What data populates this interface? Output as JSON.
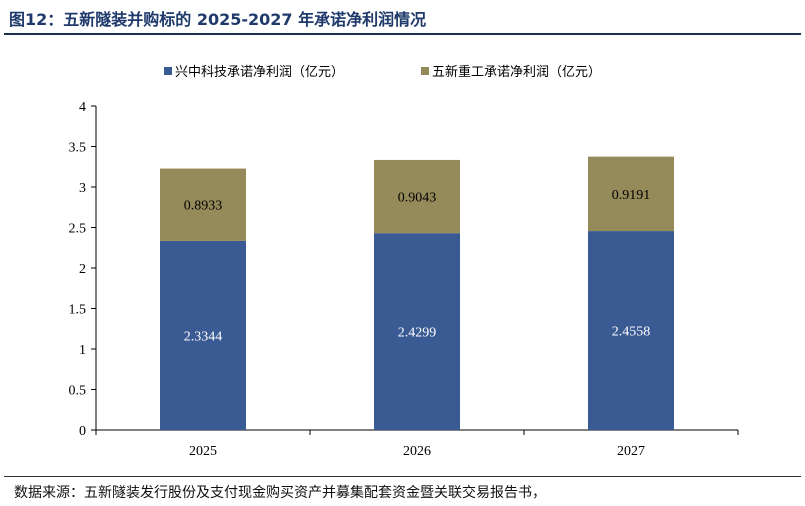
{
  "figure": {
    "title": "图12：五新隧装并购标的 2025-2027 年承诺净利润情况",
    "source": "数据来源：五新隧装发行股份及支付现金购买资产并募集配套资金暨关联交易报告书，"
  },
  "chart_data": {
    "type": "bar",
    "stacked": true,
    "categories": [
      "2025",
      "2026",
      "2027"
    ],
    "series": [
      {
        "name": "兴中科技承诺净利润（亿元）",
        "values": [
          2.3344,
          2.4299,
          2.4558
        ],
        "color": "#3a5a93",
        "label_color": "#ffffff"
      },
      {
        "name": "五新重工承诺净利润（亿元）",
        "values": [
          0.8933,
          0.9043,
          0.9191
        ],
        "color": "#958b5a",
        "label_color": "#000000"
      }
    ],
    "data_labels": [
      [
        "2.3344",
        "2.4299",
        "2.4558"
      ],
      [
        "0.8933",
        "0.9043",
        "0.9191"
      ]
    ],
    "yticks": [
      "0",
      "0.5",
      "1",
      "1.5",
      "2",
      "2.5",
      "3",
      "3.5",
      "4"
    ],
    "ylim": [
      0,
      4
    ],
    "legend_position": "top",
    "grid": false
  }
}
